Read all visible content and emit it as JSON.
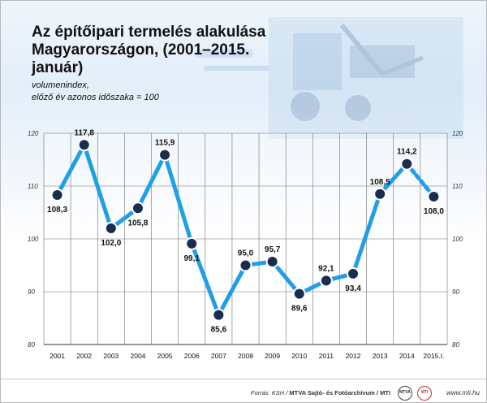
{
  "title": {
    "line1": "Az építőipari termelés alakulása",
    "line2": "Magyarországon, (2001–2015. január)"
  },
  "unit_note": {
    "line1": "volumenindex,",
    "line2": "előző év azonos időszaka = 100"
  },
  "footer": {
    "source_label": "Forrás: KSH / ",
    "archive": "MTVA Sajtó- és Fotóarchívum / MTI",
    "logo_mtva": "MTVA",
    "logo_mti": "MTI",
    "site": "www.mti.hu"
  },
  "colors": {
    "line": "#1e9fe8",
    "marker": "#1b2d4f",
    "marker_edge": "#ffffff",
    "last_segment": "#1e9fe8"
  },
  "chart_data": {
    "type": "line",
    "categories": [
      "2001",
      "2002",
      "2003",
      "2004",
      "2005",
      "2006",
      "2007",
      "2008",
      "2009",
      "2010",
      "2011",
      "2012",
      "2013",
      "2014",
      "2015.I."
    ],
    "values": [
      108.3,
      117.8,
      102.0,
      105.8,
      115.9,
      99.1,
      85.6,
      95.0,
      95.7,
      89.6,
      92.1,
      93.4,
      108.5,
      114.2,
      108.0
    ],
    "value_labels": [
      "108,3",
      "117,8",
      "102,0",
      "105,8",
      "115,9",
      "99,1",
      "85,6",
      "95,0",
      "95,7",
      "89,6",
      "92,1",
      "93,4",
      "108,5",
      "114,2",
      "108,0"
    ],
    "label_position": [
      "below",
      "above",
      "below",
      "below",
      "above",
      "below",
      "below",
      "above",
      "above",
      "below",
      "above",
      "below",
      "above",
      "above",
      "below"
    ],
    "ylim": [
      80,
      120
    ],
    "yticks": [
      80,
      90,
      100,
      110,
      120
    ],
    "last_segment_dashed": true,
    "grid": "vertical and horizontal",
    "ylabel_note": "volumenindex, előző év azonos időszaka = 100"
  }
}
